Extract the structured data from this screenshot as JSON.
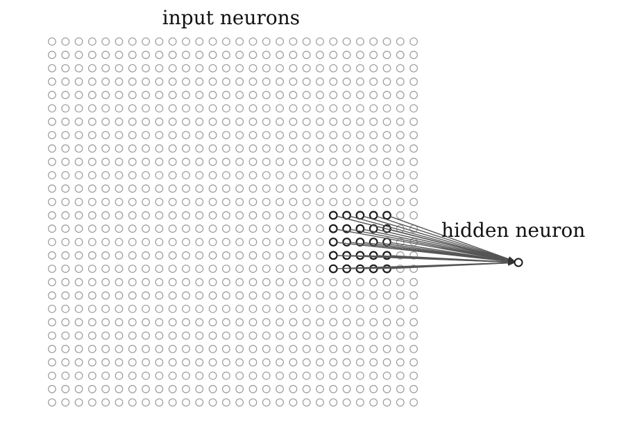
{
  "diagram": {
    "input_label": "input neurons",
    "hidden_label": "hidden neuron",
    "grid": {
      "rows": 28,
      "cols": 28
    },
    "receptive_field": {
      "first_row": 13,
      "first_col": 21,
      "size": 5
    },
    "colors": {
      "inactive_neuron": "#9a9a9a",
      "active_neuron": "#1a1a1a",
      "connection": "#555555",
      "hidden_neuron": "#1a1a1a",
      "text": "#111111"
    }
  }
}
